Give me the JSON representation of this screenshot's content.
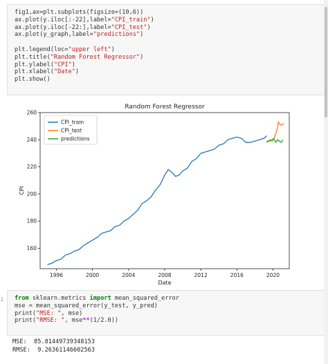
{
  "cell1": {
    "prompt": "",
    "lines": [
      [
        {
          "t": "fig1,ax=plt.subplots(figsize=(10,6))",
          "c": ""
        }
      ],
      [
        {
          "t": "ax.plot(y.iloc[:-22],label=",
          "c": ""
        },
        {
          "t": "\"CPI_train\"",
          "c": "str"
        },
        {
          "t": ")",
          "c": ""
        }
      ],
      [
        {
          "t": "ax.plot(y.iloc[-22:],label=",
          "c": ""
        },
        {
          "t": "\"CPI_test\"",
          "c": "str"
        },
        {
          "t": ")",
          "c": ""
        }
      ],
      [
        {
          "t": "ax.plot(y_graph,label=",
          "c": ""
        },
        {
          "t": "\"predictions\"",
          "c": "str"
        },
        {
          "t": ")",
          "c": ""
        }
      ],
      [
        {
          "t": "",
          "c": ""
        }
      ],
      [
        {
          "t": "plt.legend(loc=",
          "c": ""
        },
        {
          "t": "\"upper left\"",
          "c": "str"
        },
        {
          "t": ")",
          "c": ""
        }
      ],
      [
        {
          "t": "plt.title(",
          "c": ""
        },
        {
          "t": "\"Random Forest Regressor\"",
          "c": "str"
        },
        {
          "t": ")",
          "c": ""
        }
      ],
      [
        {
          "t": "plt.ylabel(",
          "c": ""
        },
        {
          "t": "\"CPI\"",
          "c": "str"
        },
        {
          "t": ")",
          "c": ""
        }
      ],
      [
        {
          "t": "plt.xlabel(",
          "c": ""
        },
        {
          "t": "\"Date\"",
          "c": "str"
        },
        {
          "t": ")",
          "c": ""
        }
      ],
      [
        {
          "t": "plt.show()",
          "c": ""
        }
      ]
    ]
  },
  "cell2": {
    "prompt": ":",
    "lines": [
      [
        {
          "t": "from",
          "c": "kw"
        },
        {
          "t": " sklearn.metrics ",
          "c": ""
        },
        {
          "t": "import",
          "c": "kw"
        },
        {
          "t": " mean_squared_error",
          "c": ""
        }
      ],
      [
        {
          "t": "mse = mean_squared_error(y_test, y_pred)",
          "c": ""
        }
      ],
      [
        {
          "t": "print(",
          "c": ""
        },
        {
          "t": "\"MSE: \"",
          "c": "str"
        },
        {
          "t": ", mse)",
          "c": ""
        }
      ],
      [
        {
          "t": "print(",
          "c": ""
        },
        {
          "t": "\"RMSE: \"",
          "c": "str"
        },
        {
          "t": ", mse",
          "c": ""
        },
        {
          "t": "**",
          "c": "op"
        },
        {
          "t": "(1/2.0))",
          "c": ""
        }
      ]
    ]
  },
  "output": {
    "mse_line": "MSE:  85.81449739348153",
    "rmse_line": "RMSE:  9.26361146602563"
  },
  "chart_data": {
    "type": "line",
    "title": "Random Forest Regressor",
    "xlabel": "Date",
    "ylabel": "CPI",
    "xlim": [
      1994.2,
      2021.8
    ],
    "ylim": [
      145,
      260
    ],
    "xticks": [
      1996,
      2000,
      2004,
      2008,
      2012,
      2016,
      2020
    ],
    "yticks": [
      160,
      180,
      200,
      220,
      240,
      260
    ],
    "legend_position": "upper left",
    "series": [
      {
        "name": "CPI_train",
        "color": "#1f77b4",
        "x": [
          1995.0,
          1995.5,
          1996.0,
          1996.5,
          1997.0,
          1997.5,
          1998.0,
          1998.5,
          1999.0,
          1999.5,
          2000.0,
          2000.5,
          2001.0,
          2001.5,
          2002.0,
          2002.5,
          2003.0,
          2003.5,
          2004.0,
          2004.5,
          2005.0,
          2005.5,
          2006.0,
          2006.5,
          2007.0,
          2007.5,
          2008.0,
          2008.4,
          2008.8,
          2009.2,
          2009.6,
          2010.0,
          2010.5,
          2011.0,
          2011.5,
          2012.0,
          2012.5,
          2013.0,
          2013.5,
          2014.0,
          2014.5,
          2015.0,
          2015.5,
          2016.0,
          2016.5,
          2017.0,
          2017.5,
          2018.0,
          2018.5,
          2019.0,
          2019.3
        ],
        "y": [
          148,
          149,
          151,
          152,
          155,
          156,
          158,
          159,
          162,
          164,
          166,
          168,
          171,
          172,
          173,
          176,
          177,
          180,
          182,
          185,
          188,
          193,
          195,
          198,
          203,
          207,
          214,
          218,
          216,
          213,
          214,
          217,
          219,
          224,
          226,
          230,
          231,
          232,
          233,
          236,
          237,
          240,
          241,
          242,
          241,
          238,
          238,
          239,
          240,
          241,
          243
        ]
      },
      {
        "name": "CPI_test",
        "color": "#ff7f0e",
        "x": [
          2019.3,
          2019.6,
          2019.9,
          2020.1,
          2020.3,
          2020.5,
          2020.6,
          2020.8,
          2021.0,
          2021.2
        ],
        "y": [
          239,
          239,
          240,
          241,
          244,
          249,
          253,
          251,
          251,
          252
        ]
      },
      {
        "name": "predictions",
        "color": "#2ca02c",
        "x": [
          2019.3,
          2019.5,
          2019.7,
          2019.9,
          2020.1,
          2020.3,
          2020.5,
          2020.7,
          2020.9,
          2021.1
        ],
        "y": [
          238,
          239,
          240,
          239,
          241,
          238,
          240,
          239,
          238,
          240
        ]
      }
    ]
  }
}
